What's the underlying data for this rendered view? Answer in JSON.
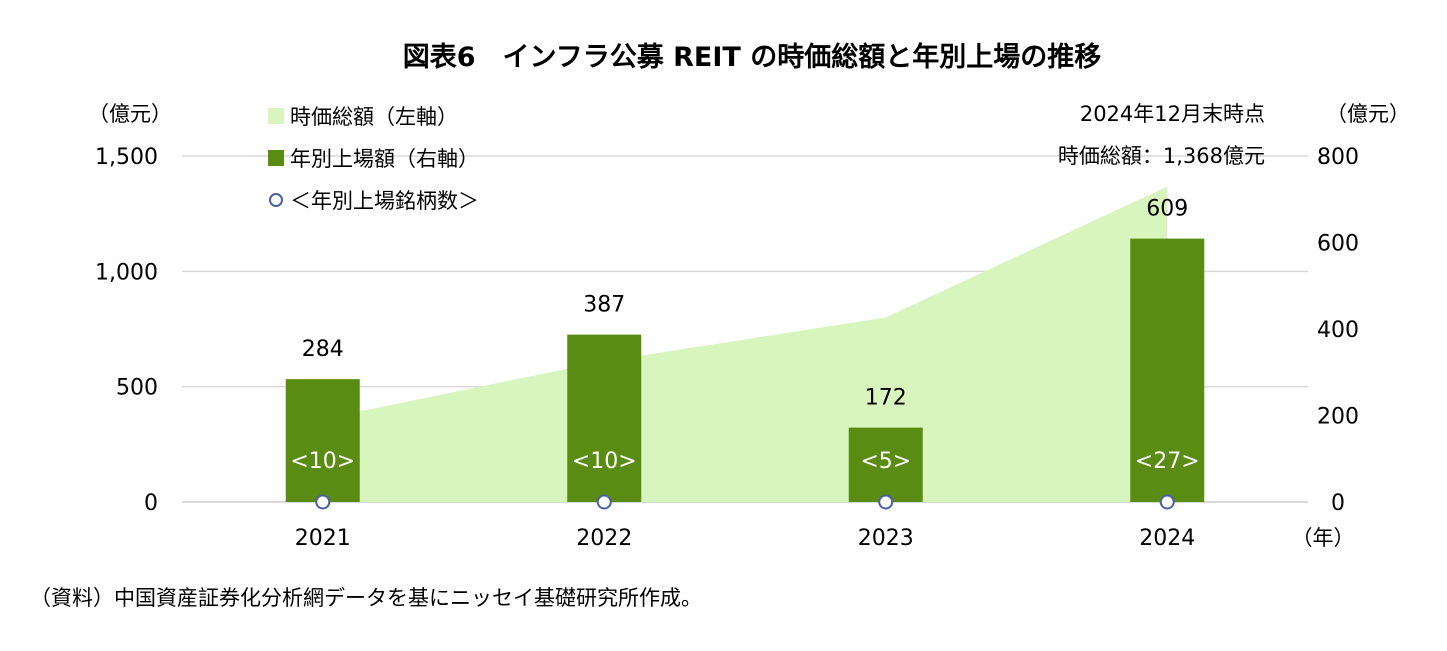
{
  "chart_data": {
    "type": "bar+area",
    "title": "図表6　インフラ公募 REIT の時価総額と年別上場の推移",
    "left_axis": {
      "unit": "（億元）",
      "ticks": [
        "0",
        "500",
        "1,000",
        "1,500"
      ],
      "range": [
        0,
        1500
      ]
    },
    "right_axis": {
      "unit": "（億元）",
      "ticks": [
        "0",
        "200",
        "400",
        "600",
        "800"
      ],
      "range": [
        0,
        800
      ]
    },
    "x_axis": {
      "unit": "（年）",
      "categories": [
        "2021",
        "2022",
        "2023",
        "2024"
      ]
    },
    "legend": {
      "area": "時価総額（左軸）",
      "bar": "年別上場額（右軸）",
      "marker": "＜年別上場銘柄数＞"
    },
    "series": [
      {
        "name": "時価総額（左軸）",
        "kind": "area",
        "axis": "left",
        "values": [
          360,
          610,
          800,
          1368
        ]
      },
      {
        "name": "年別上場額（右軸）",
        "kind": "bar",
        "axis": "right",
        "values": [
          284,
          387,
          172,
          609
        ]
      }
    ],
    "bar_labels": [
      "284",
      "387",
      "172",
      "609"
    ],
    "counts": [
      "<10>",
      "<10>",
      "<5>",
      "<27>"
    ],
    "annotation": {
      "line1": "2024年12月末時点",
      "line2": "時価総額：1,368億元"
    },
    "colors": {
      "area": "#d9f5be",
      "bar": "#5a8c14",
      "marker": "#4a5fa8",
      "grid": "#d9d9d9"
    },
    "source": "（資料）中国資産証券化分析網データを基にニッセイ基礎研究所作成。"
  }
}
